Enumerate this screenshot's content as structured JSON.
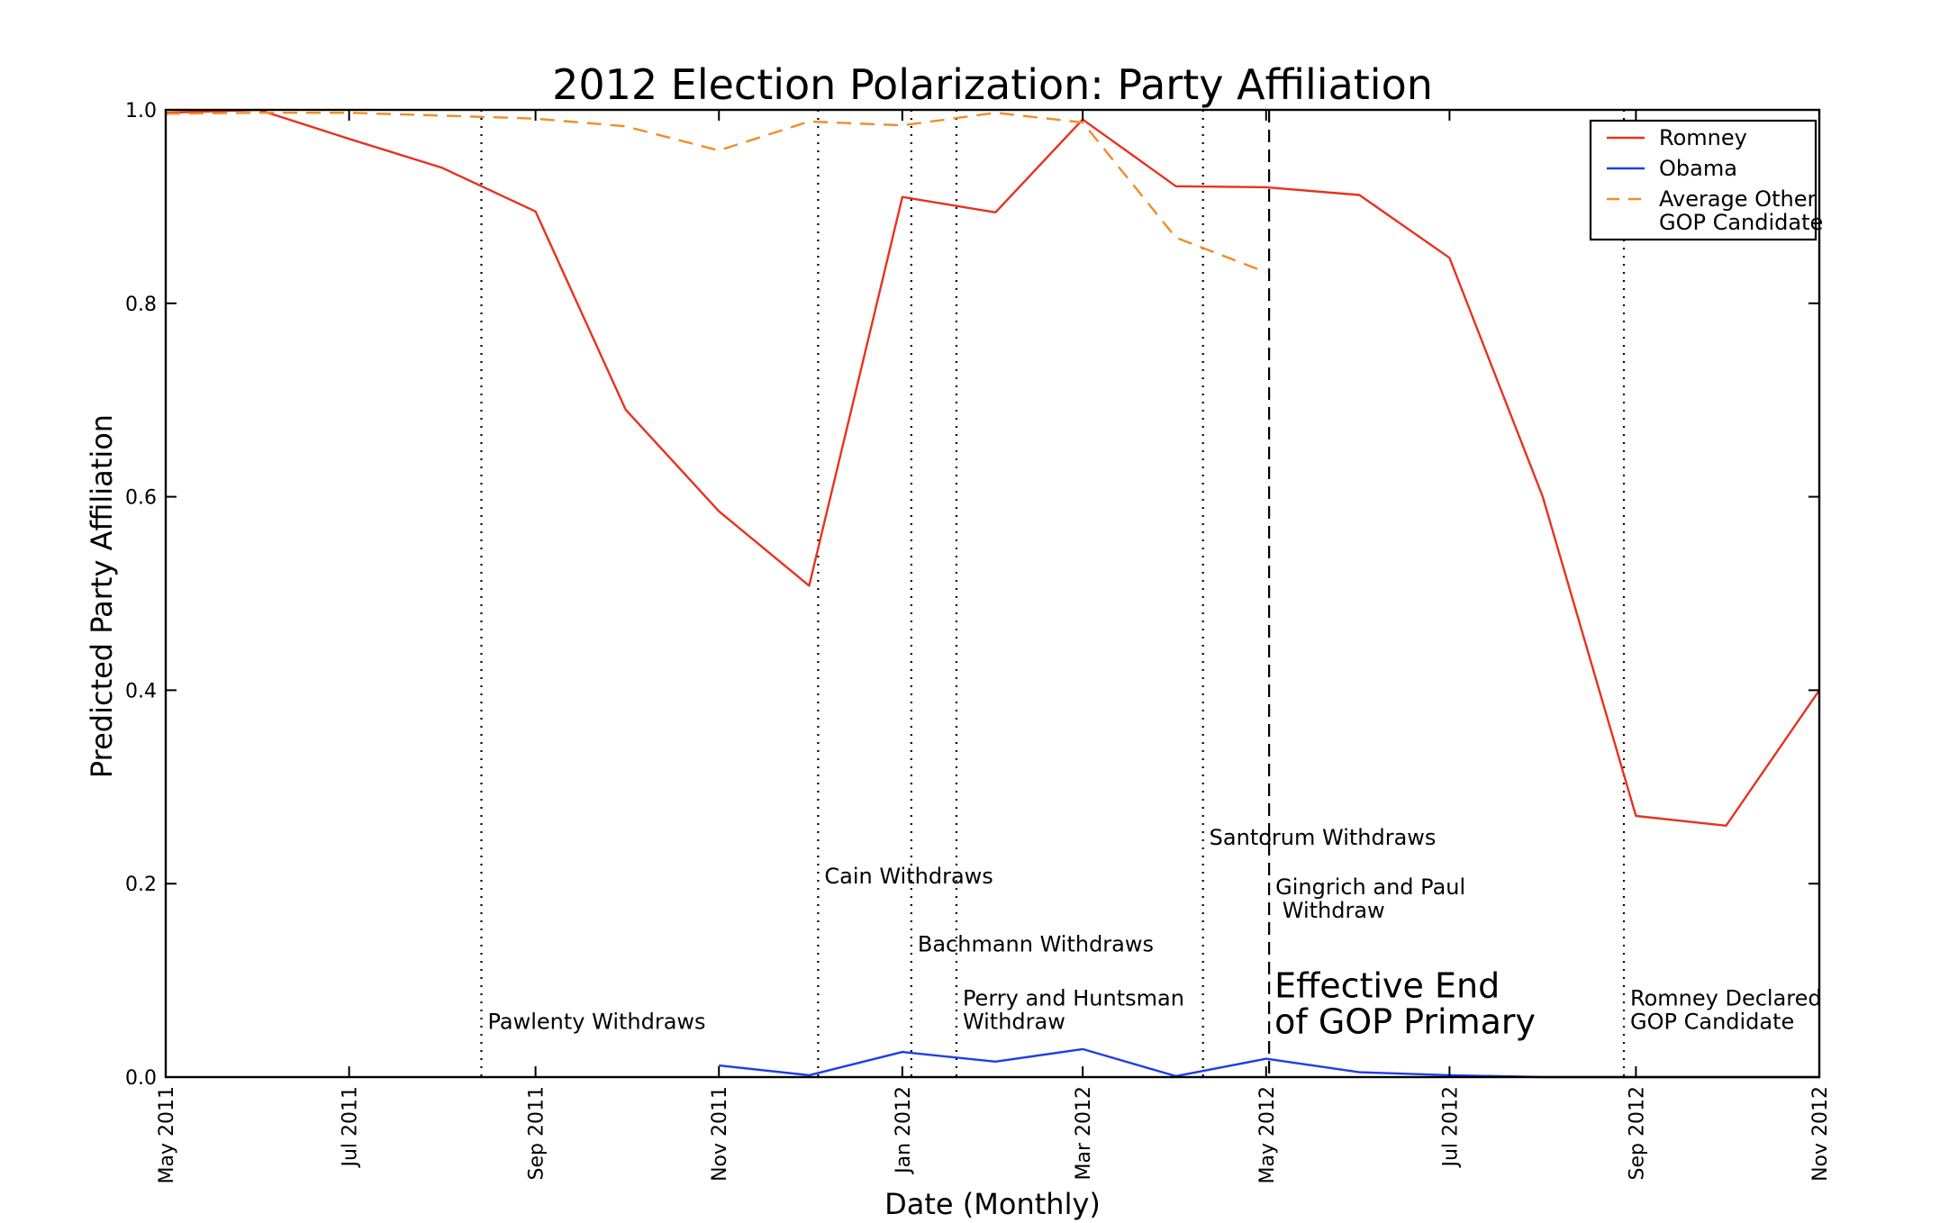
{
  "chart_data": {
    "type": "line",
    "title": "2012 Election Polarization: Party Affiliation",
    "xlabel": "Date (Monthly)",
    "ylabel": "Predicted Party Affiliation",
    "x_ticks": [
      "May 2011",
      "Jul 2011",
      "Sep 2011",
      "Nov 2011",
      "Jan 2012",
      "Mar 2012",
      "May 2012",
      "Jul 2012",
      "Sep 2012",
      "Nov 2012"
    ],
    "y_ticks": [
      "0.0",
      "0.2",
      "0.4",
      "0.6",
      "0.8",
      "1.0"
    ],
    "xlim": [
      "2011-05-01",
      "2012-11-01"
    ],
    "ylim": [
      0,
      1
    ],
    "grid": false,
    "legend_position": "top-right",
    "series": [
      {
        "name": "Romney",
        "color": "#e8321e",
        "style": "solid",
        "points": [
          [
            "2011-05-01",
            0.997
          ],
          [
            "2011-06-01",
            1.0
          ],
          [
            "2011-07-01",
            0.97
          ],
          [
            "2011-08-01",
            0.94
          ],
          [
            "2011-09-01",
            0.895
          ],
          [
            "2011-10-01",
            0.69
          ],
          [
            "2011-11-01",
            0.585
          ],
          [
            "2011-12-01",
            0.508
          ],
          [
            "2012-01-01",
            0.91
          ],
          [
            "2012-02-01",
            0.894
          ],
          [
            "2012-03-01",
            0.99
          ],
          [
            "2012-04-01",
            0.921
          ],
          [
            "2012-05-01",
            0.92
          ],
          [
            "2012-06-01",
            0.912
          ],
          [
            "2012-07-01",
            0.847
          ],
          [
            "2012-08-01",
            0.6
          ],
          [
            "2012-09-01",
            0.27
          ],
          [
            "2012-10-01",
            0.26
          ],
          [
            "2012-11-01",
            0.4
          ]
        ]
      },
      {
        "name": "Obama",
        "color": "#1f3ee6",
        "style": "solid",
        "points": [
          [
            "2011-11-01",
            0.012
          ],
          [
            "2011-12-01",
            0.002
          ],
          [
            "2012-01-01",
            0.026
          ],
          [
            "2012-02-01",
            0.016
          ],
          [
            "2012-03-01",
            0.029
          ],
          [
            "2012-04-01",
            0.001
          ],
          [
            "2012-05-01",
            0.019
          ],
          [
            "2012-06-01",
            0.005
          ],
          [
            "2012-07-01",
            0.002
          ],
          [
            "2012-08-01",
            0.0
          ],
          [
            "2012-09-01",
            0.0
          ],
          [
            "2012-10-01",
            0.0
          ],
          [
            "2012-11-01",
            0.0
          ]
        ]
      },
      {
        "name": "Average Other\nGOP Candidate",
        "color": "#f28c28",
        "style": "dashed",
        "points": [
          [
            "2011-05-01",
            0.996
          ],
          [
            "2011-06-01",
            0.997
          ],
          [
            "2011-07-01",
            0.997
          ],
          [
            "2011-08-01",
            0.994
          ],
          [
            "2011-09-01",
            0.991
          ],
          [
            "2011-10-01",
            0.983
          ],
          [
            "2011-11-01",
            0.958
          ],
          [
            "2011-12-01",
            0.988
          ],
          [
            "2012-01-01",
            0.984
          ],
          [
            "2012-02-01",
            0.997
          ],
          [
            "2012-03-01",
            0.987
          ],
          [
            "2012-04-01",
            0.868
          ],
          [
            "2012-05-01",
            0.832
          ]
        ]
      }
    ],
    "vlines": [
      {
        "date": "2011-08-14",
        "style": "dotted",
        "label": "Pawlenty Withdraws",
        "label_y": 0.05
      },
      {
        "date": "2011-12-04",
        "style": "dotted",
        "label": "Cain Withdraws",
        "label_y": 0.2
      },
      {
        "date": "2012-01-04",
        "style": "dotted",
        "label": "Bachmann Withdraws",
        "label_y": 0.13
      },
      {
        "date": "2012-01-19",
        "style": "dotted",
        "label": "Perry and Huntsman\nWithdraw",
        "label_y": 0.05
      },
      {
        "date": "2012-04-10",
        "style": "dotted",
        "label": "Santorum Withdraws",
        "label_y": 0.24
      },
      {
        "date": "2012-05-02",
        "style": "dashed",
        "label": "Gingrich and Paul\n Withdraw",
        "label_y": 0.165
      },
      {
        "date": "2012-08-28",
        "style": "dotted",
        "label": "Romney Declared\nGOP Candidate",
        "label_y": 0.05
      }
    ],
    "big_annotation": {
      "label": "Effective End\nof GOP Primary",
      "date": "2012-05-02",
      "label_y": 0.045
    }
  }
}
